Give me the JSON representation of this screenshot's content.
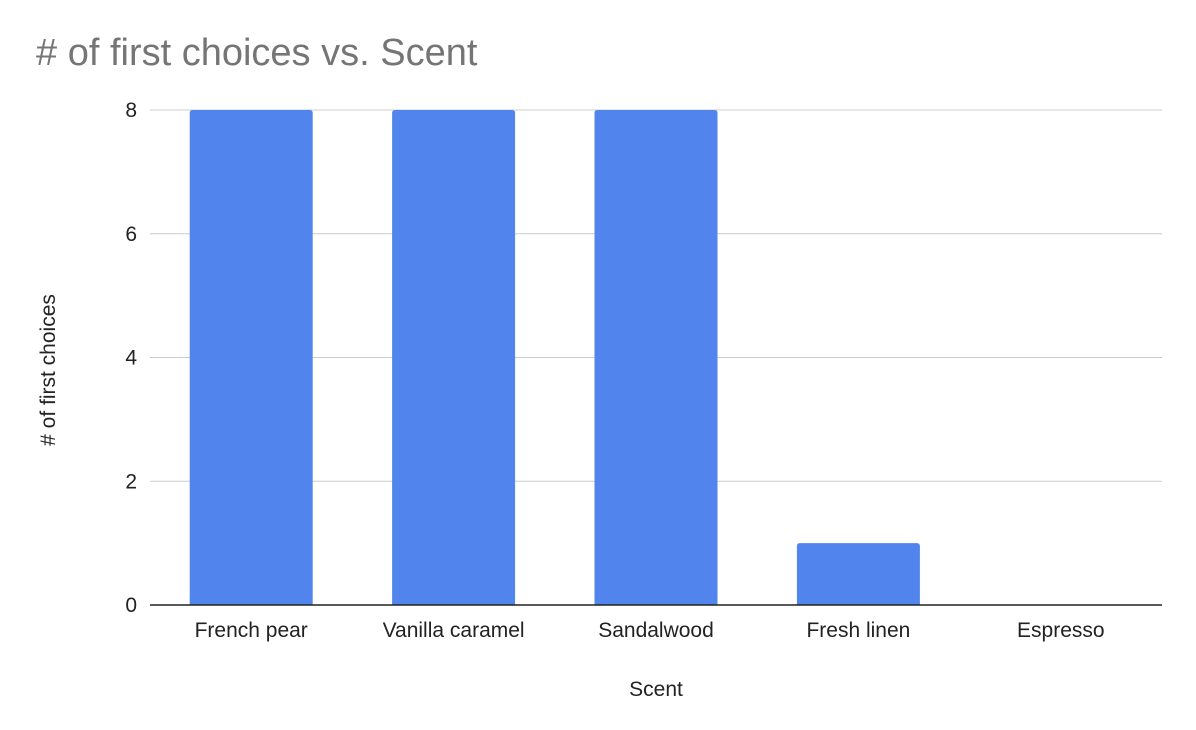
{
  "chart_data": {
    "type": "bar",
    "title": "# of first choices vs. Scent",
    "xlabel": "Scent",
    "ylabel": "# of first choices",
    "categories": [
      "French pear",
      "Vanilla caramel",
      "Sandalwood",
      "Fresh linen",
      "Espresso"
    ],
    "values": [
      8,
      8,
      8,
      1,
      0
    ],
    "ylim": [
      0,
      8
    ],
    "yticks": [
      "0",
      "2",
      "4",
      "6",
      "8"
    ],
    "grid": true,
    "legend": "none",
    "bar_color": "#5185ED",
    "grid_color": "#cccccc",
    "axis_color": "#222222",
    "title_color": "#757575"
  }
}
